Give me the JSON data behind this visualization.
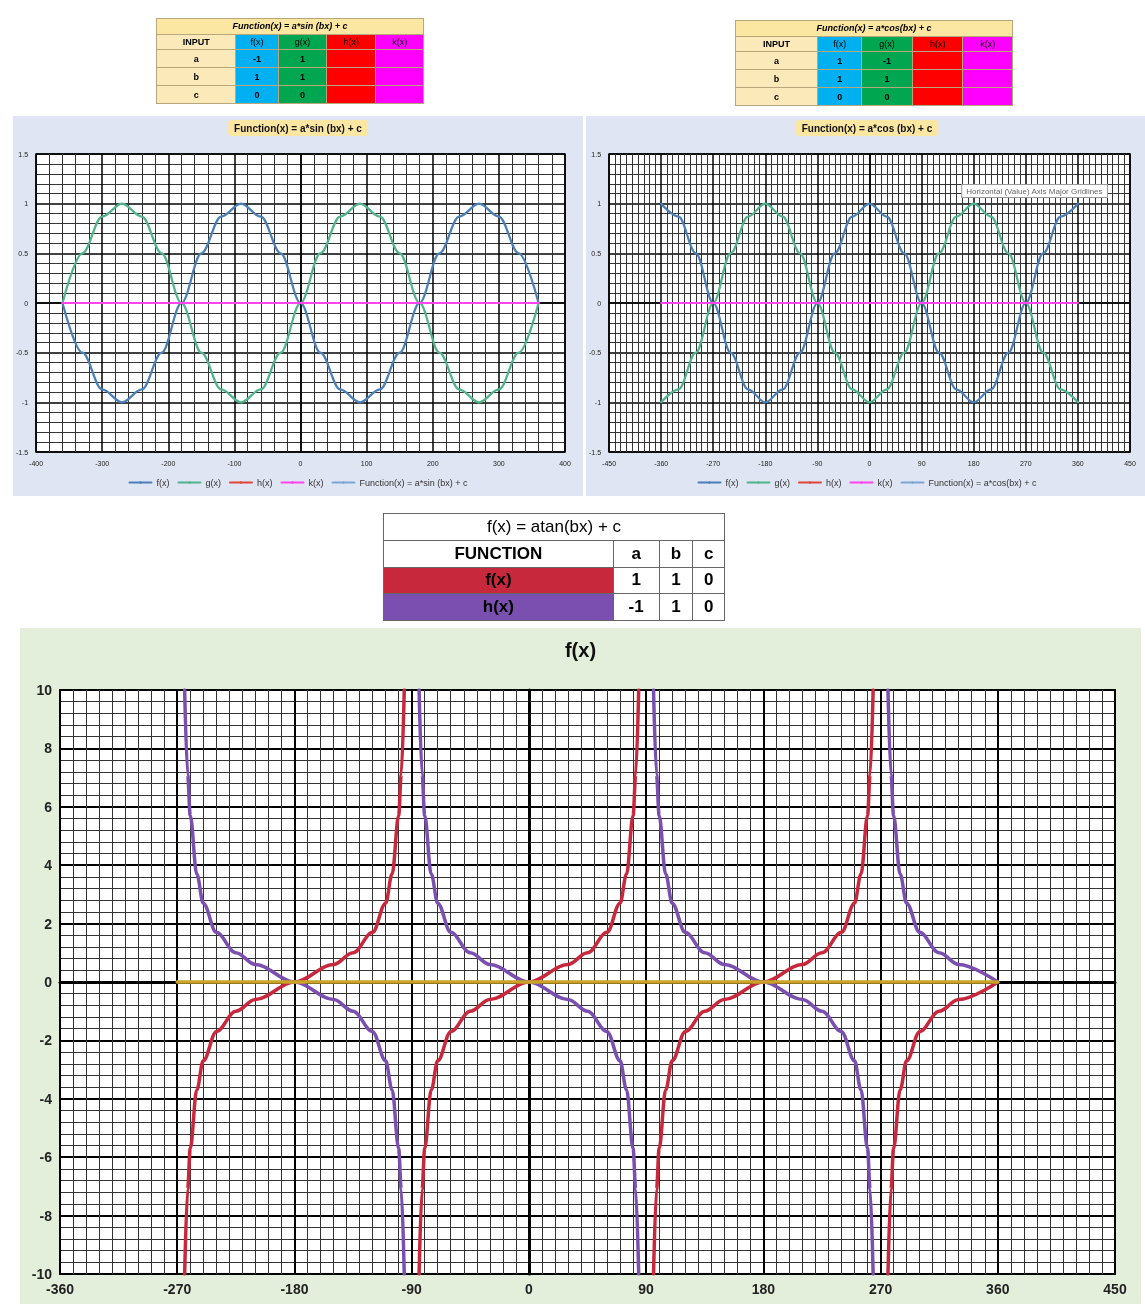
{
  "chart_data": [
    {
      "type": "other",
      "title": "Function(x) = a*sin (bx) + c",
      "categories": [
        "INPUT",
        "f(x)",
        "g(x)",
        "h(x)",
        "k(x)"
      ],
      "y_categories": [
        "a",
        "b",
        "c"
      ],
      "cell_labels": [
        [
          "-1",
          "1",
          null,
          null
        ],
        [
          "1",
          "1",
          null,
          null
        ],
        [
          "0",
          "0",
          null,
          null
        ]
      ],
      "colors": [
        "#fbe9b9",
        "#00b0f0",
        "#00a650",
        "#ff0000",
        "#ff00ff"
      ]
    },
    {
      "type": "other",
      "title": "Function(x) = a*cos(bx) + c",
      "categories": [
        "INPUT",
        "f(x)",
        "g(x)",
        "h(x)",
        "k(x)"
      ],
      "y_categories": [
        "a",
        "b",
        "c"
      ],
      "cell_labels": [
        [
          "1",
          "-1",
          null,
          null
        ],
        [
          "1",
          "1",
          null,
          null
        ],
        [
          "0",
          "0",
          null,
          null
        ]
      ],
      "colors": [
        "#fbe9b9",
        "#00b0f0",
        "#00a650",
        "#ff0000",
        "#ff00ff"
      ]
    },
    {
      "type": "line",
      "title": "Function(x) = a*sin (bx) + c",
      "xlim": [
        -400,
        400
      ],
      "xticks": [
        -400,
        -300,
        -200,
        -100,
        0,
        100,
        200,
        300,
        400
      ],
      "ylim": [
        -1.5,
        1.5
      ],
      "yticks": [
        -1.5,
        -1,
        -0.5,
        0,
        0.5,
        1,
        1.5
      ],
      "grid": true,
      "legend": "bottom",
      "marker": "none",
      "series": [
        {
          "name": "f(x)",
          "color": "#4a7fb8",
          "x": [
            -360,
            -330,
            -300,
            -270,
            -240,
            -210,
            -180,
            -150,
            -120,
            -90,
            -60,
            -30,
            0,
            30,
            60,
            90,
            120,
            150,
            180,
            210,
            240,
            270,
            300,
            330,
            360
          ],
          "values": [
            0,
            -0.5,
            -0.87,
            -1,
            -0.87,
            -0.5,
            0,
            0.5,
            0.87,
            1,
            0.87,
            0.5,
            0,
            -0.5,
            -0.87,
            -1,
            -0.87,
            -0.5,
            0,
            0.5,
            0.87,
            1,
            0.87,
            0.5,
            0
          ]
        },
        {
          "name": "g(x)",
          "color": "#4fb38c",
          "x": [
            -360,
            -330,
            -300,
            -270,
            -240,
            -210,
            -180,
            -150,
            -120,
            -90,
            -60,
            -30,
            0,
            30,
            60,
            90,
            120,
            150,
            180,
            210,
            240,
            270,
            300,
            330,
            360
          ],
          "values": [
            0,
            0.5,
            0.87,
            1,
            0.87,
            0.5,
            0,
            -0.5,
            -0.87,
            -1,
            -0.87,
            -0.5,
            0,
            0.5,
            0.87,
            1,
            0.87,
            0.5,
            0,
            -0.5,
            -0.87,
            -1,
            -0.87,
            -0.5,
            0
          ]
        },
        {
          "name": "h(x)",
          "color": "#e0453a"
        },
        {
          "name": "k(x)",
          "color": "#ff44ee",
          "x": [
            -360,
            360
          ],
          "values": [
            0,
            0
          ]
        },
        {
          "name": "Function(x) = a*sin (bx) + c",
          "color": "#7ea6d3"
        }
      ]
    },
    {
      "type": "line",
      "title": "Function(x) = a*cos (bx) + c",
      "xlim": [
        -450,
        450
      ],
      "xticks": [
        -450,
        -360,
        -270,
        -180,
        -90,
        0,
        90,
        180,
        270,
        360,
        450
      ],
      "ylim": [
        -1.5,
        1.5
      ],
      "yticks": [
        -1.5,
        -1,
        -0.5,
        0,
        0.5,
        1,
        1.5
      ],
      "grid": true,
      "legend": "bottom",
      "marker": "none",
      "annotations": [
        "Horizontal (Value) Axis Major Gridlines"
      ],
      "series": [
        {
          "name": "f(x)",
          "color": "#4a7fb8",
          "x": [
            -360,
            -330,
            -300,
            -270,
            -240,
            -210,
            -180,
            -150,
            -120,
            -90,
            -60,
            -30,
            0,
            30,
            60,
            90,
            120,
            150,
            180,
            210,
            240,
            270,
            300,
            330,
            360
          ],
          "values": [
            1,
            0.87,
            0.5,
            0,
            -0.5,
            -0.87,
            -1,
            -0.87,
            -0.5,
            0,
            0.5,
            0.87,
            1,
            0.87,
            0.5,
            0,
            -0.5,
            -0.87,
            -1,
            -0.87,
            -0.5,
            0,
            0.5,
            0.87,
            1
          ]
        },
        {
          "name": "g(x)",
          "color": "#4fb38c",
          "x": [
            -360,
            -330,
            -300,
            -270,
            -240,
            -210,
            -180,
            -150,
            -120,
            -90,
            -60,
            -30,
            0,
            30,
            60,
            90,
            120,
            150,
            180,
            210,
            240,
            270,
            300,
            330,
            360
          ],
          "values": [
            -1,
            -0.87,
            -0.5,
            0,
            0.5,
            0.87,
            1,
            0.87,
            0.5,
            0,
            -0.5,
            -0.87,
            -1,
            -0.87,
            -0.5,
            0,
            0.5,
            0.87,
            1,
            0.87,
            0.5,
            0,
            -0.5,
            -0.87,
            -1
          ]
        },
        {
          "name": "h(x)",
          "color": "#e0453a"
        },
        {
          "name": "k(x)",
          "color": "#ff44ee",
          "x": [
            -360,
            360
          ],
          "values": [
            0,
            0
          ]
        },
        {
          "name": "Function(x) = a*cos(bx) + c",
          "color": "#7ea6d3"
        }
      ]
    },
    {
      "type": "other",
      "title": "f(x) = atan(bx) + c",
      "categories": [
        "FUNCTION",
        "a",
        "b",
        "c"
      ],
      "y_categories": [
        "f(x)",
        "h(x)"
      ],
      "cell_labels": [
        [
          "1",
          "1",
          "0"
        ],
        [
          "-1",
          "1",
          "0"
        ]
      ]
    },
    {
      "type": "line",
      "title": "f(x)",
      "xlim": [
        -360,
        450
      ],
      "xticks": [
        -360,
        -270,
        -180,
        -90,
        0,
        90,
        180,
        270,
        360,
        450
      ],
      "ylim": [
        -10,
        10
      ],
      "yticks": [
        -10,
        -8,
        -6,
        -4,
        -2,
        0,
        2,
        4,
        6,
        8,
        10
      ],
      "grid": true,
      "marker": "none",
      "series": [
        {
          "color": "#c8283c",
          "x": [
            -264.3,
            -262,
            -260,
            -255,
            -250,
            -240,
            -225,
            -210,
            -180,
            -150,
            -135,
            -120,
            -110,
            -105,
            -100,
            -98,
            -95.7,
            -90,
            -84.3,
            -82,
            -80,
            -75,
            -70,
            -60,
            -45,
            -30,
            0,
            30,
            45,
            60,
            70,
            75,
            80,
            82,
            84.3,
            90,
            95.7,
            98,
            100,
            105,
            110,
            120,
            135,
            150,
            180,
            210,
            225,
            240,
            250,
            255,
            260,
            262,
            264.3,
            270,
            275.7,
            278,
            280,
            285,
            290,
            300,
            315,
            330,
            360
          ],
          "values": [
            -10,
            -7.1,
            -5.7,
            -3.7,
            -2.7,
            -1.7,
            -1,
            -0.6,
            0,
            0.6,
            1,
            1.7,
            2.7,
            3.7,
            5.7,
            7.1,
            10,
            null,
            -10,
            -7.1,
            -5.7,
            -3.7,
            -2.7,
            -1.7,
            -1,
            -0.6,
            0,
            0.6,
            1,
            1.7,
            2.7,
            3.7,
            5.7,
            7.1,
            10,
            null,
            -10,
            -7.1,
            -5.7,
            -3.7,
            -2.7,
            -1.7,
            -1,
            -0.6,
            0,
            0.6,
            1,
            1.7,
            2.7,
            3.7,
            5.7,
            7.1,
            10,
            null,
            -10,
            -7.1,
            -5.7,
            -3.7,
            -2.7,
            -1.7,
            -1,
            -0.6,
            0
          ]
        },
        {
          "color": "#7a4fb0",
          "x": [
            -264.3,
            -262,
            -260,
            -255,
            -250,
            -240,
            -225,
            -210,
            -180,
            -150,
            -135,
            -120,
            -110,
            -105,
            -100,
            -98,
            -95.7,
            -90,
            -84.3,
            -82,
            -80,
            -75,
            -70,
            -60,
            -45,
            -30,
            0,
            30,
            45,
            60,
            70,
            75,
            80,
            82,
            84.3,
            90,
            95.7,
            98,
            100,
            105,
            110,
            120,
            135,
            150,
            180,
            210,
            225,
            240,
            250,
            255,
            260,
            262,
            264.3,
            270,
            275.7,
            278,
            280,
            285,
            290,
            300,
            315,
            330,
            360
          ],
          "values": [
            10,
            7.1,
            5.7,
            3.7,
            2.7,
            1.7,
            1,
            0.6,
            0,
            -0.6,
            -1,
            -1.7,
            -2.7,
            -3.7,
            -5.7,
            -7.1,
            -10,
            null,
            10,
            7.1,
            5.7,
            3.7,
            2.7,
            1.7,
            1,
            0.6,
            0,
            -0.6,
            -1,
            -1.7,
            -2.7,
            -3.7,
            -5.7,
            -7.1,
            -10,
            null,
            10,
            7.1,
            5.7,
            3.7,
            2.7,
            1.7,
            1,
            0.6,
            0,
            -0.6,
            -1,
            -1.7,
            -2.7,
            -3.7,
            -5.7,
            -7.1,
            -10,
            null,
            10,
            7.1,
            5.7,
            3.7,
            2.7,
            1.7,
            1,
            0.6,
            0
          ]
        },
        {
          "color": "#c9a227",
          "x": [
            -270,
            360
          ],
          "values": [
            0,
            0
          ]
        }
      ]
    }
  ]
}
